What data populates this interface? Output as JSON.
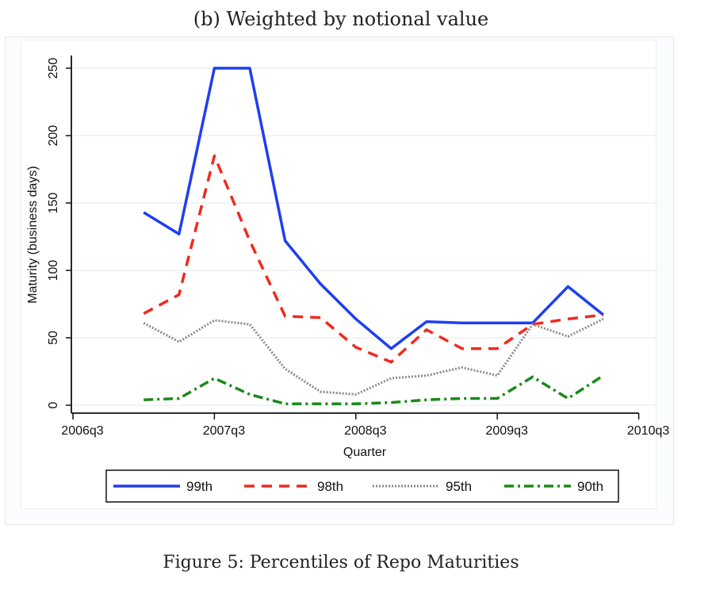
{
  "figure": {
    "subtitle": "(b) Weighted by notional value",
    "caption": "Figure 5: Percentiles of Repo Maturities"
  },
  "chart_data": {
    "type": "line",
    "title": "(b) Weighted by notional value",
    "xlabel": "Quarter",
    "ylabel": "Maturity (business days)",
    "x_ticks": [
      "2006q3",
      "2007q3",
      "2008q3",
      "2009q3",
      "2010q3"
    ],
    "y_ticks": [
      0,
      50,
      100,
      150,
      200,
      250
    ],
    "ylim": [
      0,
      250
    ],
    "xlim": [
      "2006q3",
      "2010q3"
    ],
    "x": [
      "2007q1",
      "2007q2",
      "2007q3",
      "2007q4",
      "2008q1",
      "2008q2",
      "2008q3",
      "2008q4",
      "2009q1",
      "2009q2",
      "2009q3",
      "2009q4",
      "2010q1",
      "2010q2"
    ],
    "x_index": [
      2,
      3,
      4,
      5,
      6,
      7,
      8,
      9,
      10,
      11,
      12,
      13,
      14,
      15
    ],
    "grid": true,
    "legend_position": "bottom",
    "series": [
      {
        "name": "99th",
        "color": "#1f3ff0",
        "style": "solid",
        "values": [
          143,
          127,
          250,
          250,
          122,
          90,
          64,
          42,
          62,
          61,
          61,
          61,
          88,
          67
        ]
      },
      {
        "name": "98th",
        "color": "#f02a1f",
        "style": "dash",
        "values": [
          68,
          82,
          185,
          122,
          66,
          65,
          43,
          32,
          56,
          42,
          42,
          60,
          64,
          67
        ]
      },
      {
        "name": "95th",
        "color": "#8a8a8a",
        "style": "dot",
        "values": [
          61,
          47,
          63,
          60,
          27,
          10,
          8,
          20,
          22,
          28,
          22,
          60,
          51,
          64
        ]
      },
      {
        "name": "90th",
        "color": "#1a8a1a",
        "style": "dashdot",
        "values": [
          4,
          5,
          20,
          8,
          1,
          1,
          1,
          2,
          4,
          5,
          5,
          21,
          5,
          22
        ]
      }
    ]
  }
}
